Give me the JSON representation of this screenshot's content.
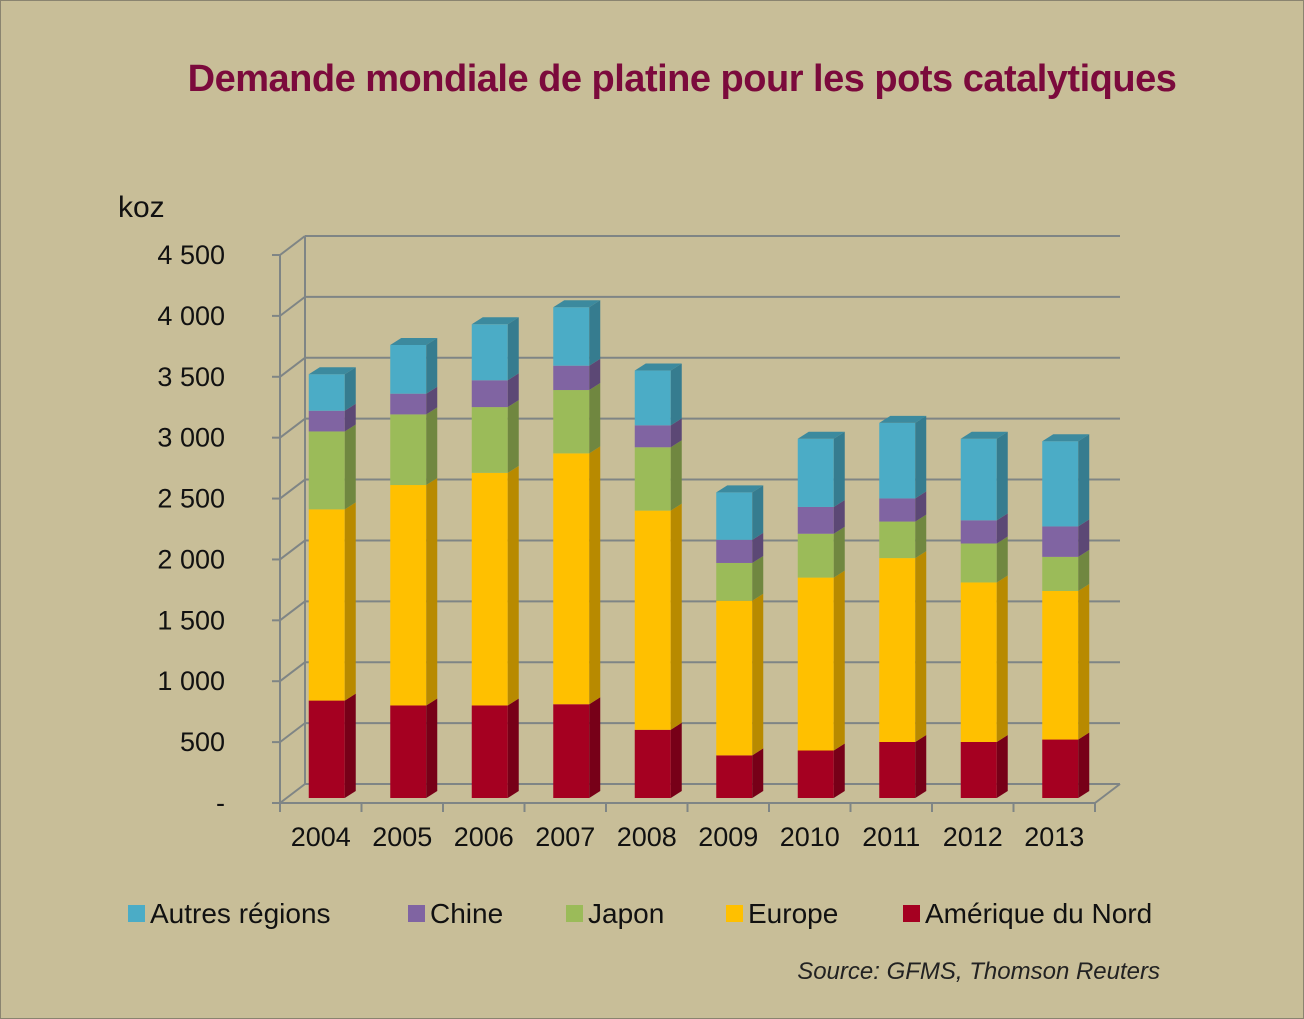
{
  "chart_data": {
    "type": "bar",
    "stacked": true,
    "three_d": true,
    "title": "Demande mondiale de platine pour les pots catalytiques",
    "ylabel": "koz",
    "xlabel": "",
    "ylim": [
      0,
      4500
    ],
    "yticks": [
      0,
      500,
      1000,
      1500,
      2000,
      2500,
      3000,
      3500,
      4000,
      4500
    ],
    "ytick_labels": [
      "-",
      "500",
      "1 000",
      "1 500",
      "2 000",
      "2 500",
      "3 000",
      "3 500",
      "4 000",
      "4 500"
    ],
    "grid": true,
    "legend_position": "bottom",
    "categories": [
      "2004",
      "2005",
      "2006",
      "2007",
      "2008",
      "2009",
      "2010",
      "2011",
      "2012",
      "2013"
    ],
    "series": [
      {
        "name": "Amérique du Nord",
        "color": "#a50021",
        "values": [
          800,
          760,
          760,
          770,
          560,
          350,
          390,
          460,
          460,
          480
        ]
      },
      {
        "name": "Europe",
        "color": "#ffc000",
        "values": [
          1570,
          1810,
          1910,
          2060,
          1800,
          1270,
          1420,
          1510,
          1310,
          1220
        ]
      },
      {
        "name": "Japon",
        "color": "#9bbb59",
        "values": [
          640,
          580,
          540,
          520,
          520,
          310,
          360,
          300,
          320,
          280
        ]
      },
      {
        "name": "Chine",
        "color": "#8064a2",
        "values": [
          170,
          170,
          220,
          200,
          180,
          190,
          220,
          190,
          190,
          250
        ]
      },
      {
        "name": "Autres régions",
        "color": "#4bacc6",
        "values": [
          300,
          400,
          460,
          480,
          450,
          390,
          560,
          620,
          670,
          700
        ]
      }
    ],
    "legend_order": [
      "Autres régions",
      "Chine",
      "Japon",
      "Europe",
      "Amérique du Nord"
    ],
    "source": "Source: GFMS,  Thomson Reuters"
  }
}
